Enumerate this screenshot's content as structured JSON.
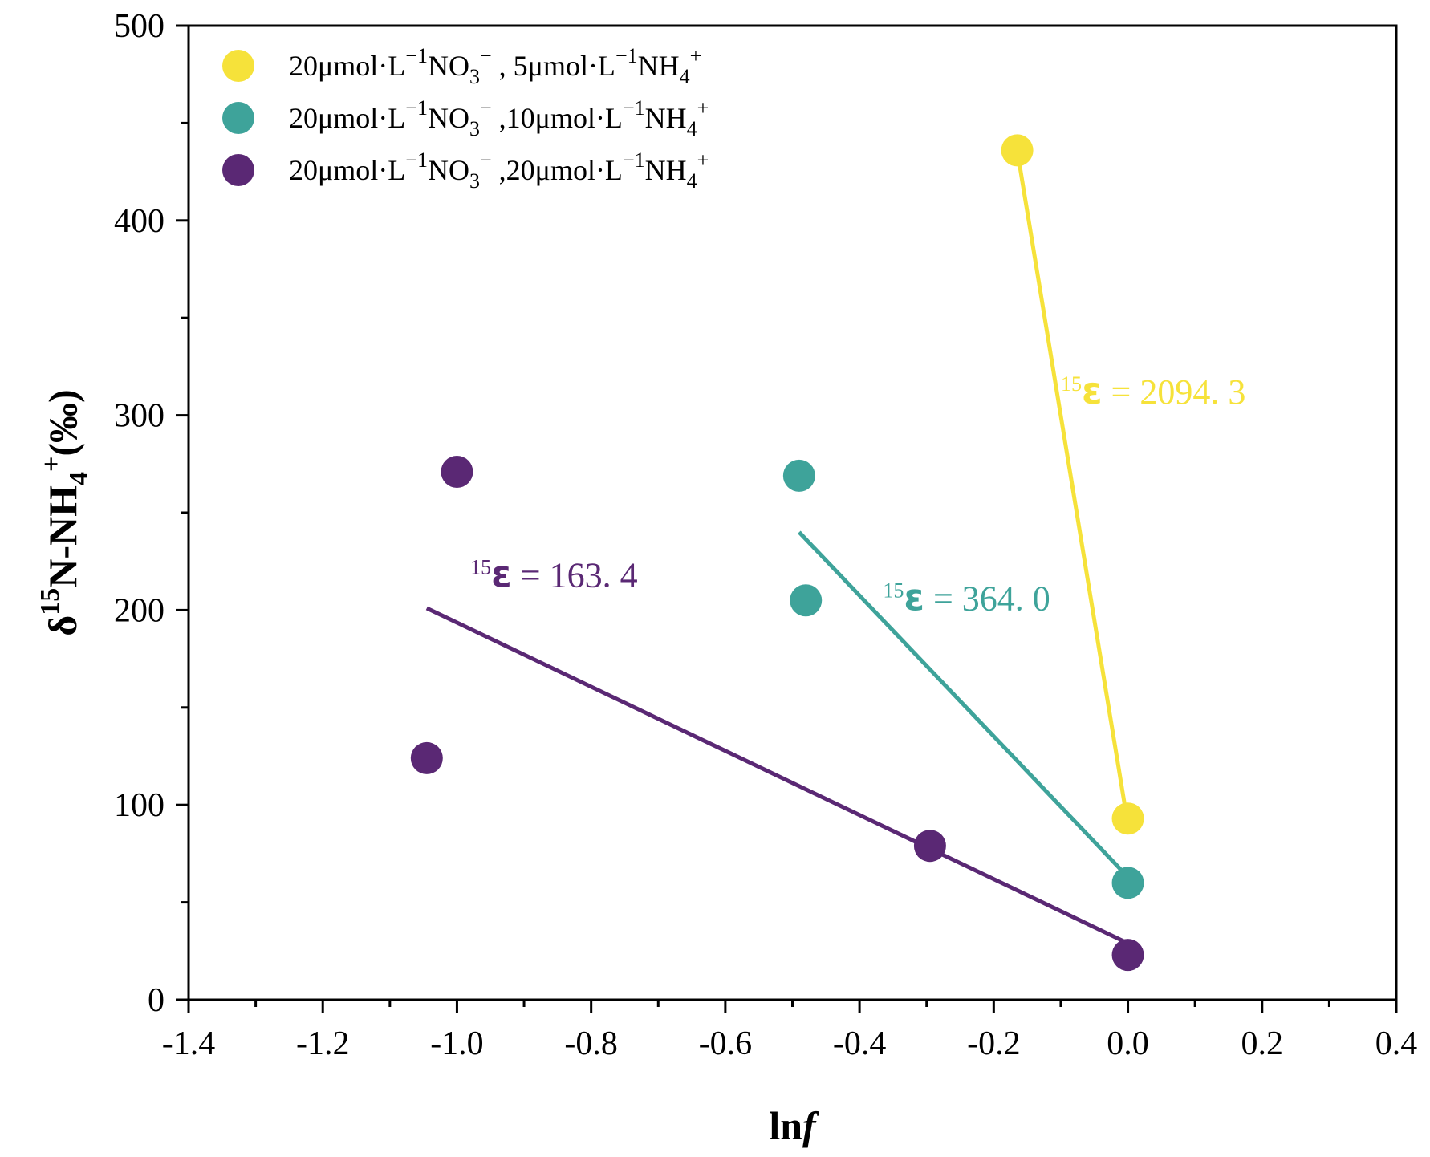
{
  "chart_data": {
    "type": "scatter",
    "xlabel": {
      "main": "ln",
      "italic": "f"
    },
    "ylabel": {
      "delta": "δ",
      "iso": "15",
      "species": "N-NH",
      "sub": "4",
      "charge": "+",
      "unit": "(‰)"
    },
    "xlim": [
      -1.4,
      0.4
    ],
    "ylim": [
      0,
      500
    ],
    "xticks": [
      -1.4,
      -1.2,
      -1.0,
      -0.8,
      -0.6,
      -0.4,
      -0.2,
      0.0,
      0.2,
      0.4
    ],
    "xtick_labels": [
      "-1.4",
      "-1.2",
      "-1.0",
      "-0.8",
      "-0.6",
      "-0.4",
      "-0.2",
      "0.0",
      "0.2",
      "0.4"
    ],
    "yticks": [
      0,
      100,
      200,
      300,
      400,
      500
    ],
    "ytick_labels": [
      "0",
      "100",
      "200",
      "300",
      "400",
      "500"
    ],
    "legend_position": "top-left",
    "series": [
      {
        "name": "20μmol·L⁻¹NO₃⁻ , 5μmol·L⁻¹NH₄⁺",
        "legend": {
          "a": "20μmol·L",
          "a_sup": "−1",
          "b": "NO",
          "b_sub": "3",
          "b_sup": "−",
          "c": " , 5μmol·L",
          "c_sup": "−1",
          "d": "NH",
          "d_sub": "4",
          "d_sup": "+"
        },
        "color": "#f6e23a",
        "points": [
          {
            "x": -0.165,
            "y": 436
          },
          {
            "x": 0.0,
            "y": 93
          }
        ],
        "fit": [
          {
            "x": -0.165,
            "y": 436
          },
          {
            "x": 0.0,
            "y": 90
          }
        ],
        "annotation": {
          "iso": "15",
          "eps": "ε",
          "rest": " = 2094. 3",
          "x": -0.1,
          "y": 306
        }
      },
      {
        "name": "20μmol·L⁻¹NO₃⁻ ,10μmol·L⁻¹NH₄⁺",
        "legend": {
          "a": "20μmol·L",
          "a_sup": "−1",
          "b": "NO",
          "b_sub": "3",
          "b_sup": "−",
          "c": " ,10μmol·L",
          "c_sup": "−1",
          "d": "NH",
          "d_sub": "4",
          "d_sup": "+"
        },
        "color": "#3ea39a",
        "points": [
          {
            "x": -0.49,
            "y": 269
          },
          {
            "x": -0.48,
            "y": 205
          },
          {
            "x": 0.0,
            "y": 60
          }
        ],
        "fit": [
          {
            "x": -0.49,
            "y": 240
          },
          {
            "x": 0.0,
            "y": 63
          }
        ],
        "annotation": {
          "iso": "15",
          "eps": "ε",
          "rest": " = 364. 0",
          "x": -0.365,
          "y": 200
        }
      },
      {
        "name": "20μmol·L⁻¹NO₃⁻ ,20μmol·L⁻¹NH₄⁺",
        "legend": {
          "a": "20μmol·L",
          "a_sup": "−1",
          "b": "NO",
          "b_sub": "3",
          "b_sup": "−",
          "c": " ,20μmol·L",
          "c_sup": "−1",
          "d": "NH",
          "d_sub": "4",
          "d_sup": "+"
        },
        "color": "#5a2874",
        "points": [
          {
            "x": -1.0,
            "y": 271
          },
          {
            "x": -1.045,
            "y": 124
          },
          {
            "x": -0.295,
            "y": 79
          },
          {
            "x": 0.0,
            "y": 23
          }
        ],
        "fit": [
          {
            "x": -1.045,
            "y": 201
          },
          {
            "x": 0.0,
            "y": 29
          }
        ],
        "annotation": {
          "iso": "15",
          "eps": "ε",
          "rest": " = 163. 4",
          "x": -0.98,
          "y": 212
        }
      }
    ]
  }
}
